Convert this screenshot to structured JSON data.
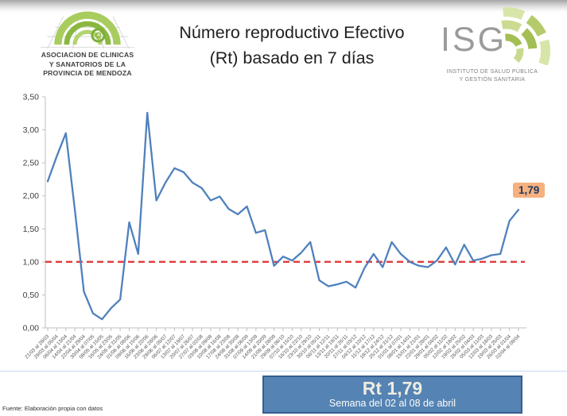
{
  "header": {
    "left_logo": {
      "line1": "ASOCIACION DE CLINICAS",
      "line2": "Y SANATORIOS DE LA",
      "line3": "PROVINCIA DE MENDOZA"
    },
    "title_line1": "Número reproductivo Efectivo",
    "title_line2": "(Rt) basado en 7 días",
    "right_logo": {
      "acronym": "ISG",
      "sub_line1": "INSTITUTO DE SALUD PÚBLICA",
      "sub_line2": "Y GESTIÓN SANITARIA"
    }
  },
  "chart_data": {
    "type": "line",
    "title": "Número reproductivo Efectivo (Rt) basado en 7 días",
    "ylabel": "",
    "xlabel": "",
    "ylim": [
      0,
      3.5
    ],
    "y_ticks": [
      "0,00",
      "0,50",
      "1,00",
      "1,50",
      "2,00",
      "2,50",
      "3,00",
      "3,50"
    ],
    "grid": false,
    "legend_position": "none",
    "line_color": "#4f81bd",
    "axis_color": "#bfbfbf",
    "reference_line": {
      "value": 1.0,
      "color": "#e03b3b",
      "style": "dashed"
    },
    "categories": [
      "21/03 al 28/03",
      "29/03 al 05/04",
      "06/04 al 13/04",
      "14/04 al 21/04",
      "22/04 al 29/04",
      "30/04 al 07/05",
      "08/05 al 15/05",
      "16/05 al 23/05",
      "24/05 al 31/05",
      "01/06 al 08/06",
      "09/06 al 15/06",
      "16/06 al 22/06",
      "23/06 al 28/06",
      "29/06 al 05/07",
      "06/07 al 12/07",
      "13/07 al 19/07",
      "20/07 al 26/07",
      "27/07 al 02/08",
      "03/08 al 09/08",
      "10/08 al 16/08",
      "17/08 al 23/08",
      "24/08 al 30/08",
      "31/08 al 06/09",
      "07/09 al 13/09",
      "14/09 al 20/09",
      "21/09 al 28/09",
      "29/09 al 06/10",
      "07/10 al 15/10",
      "16/10 al 22/10",
      "23/10 al 29/10",
      "30/10 al 05/11",
      "06/11 al 12/11",
      "13/11 al 19/11",
      "20/11 al 26/11",
      "27/11 al 03/12",
      "04/12 al 10/12",
      "11/12 al 17/12",
      "18/12 al 24/12",
      "25/12 al 31/12",
      "01/01 al 07/01",
      "08/01 al 14/01",
      "15/01 al 21/01",
      "22/01 al 28/01",
      "29/01 al 04/02",
      "05/02 al 11/02",
      "12/02 al 18/02",
      "19/02 al 25/02",
      "26/02 al 04/03",
      "05/03 al 11/03",
      "12/03 al 18/03",
      "19/03 al 25/03",
      "26/03 al 01/04",
      "02/04 al 08/04"
    ],
    "values": [
      2.22,
      2.6,
      2.95,
      1.78,
      0.55,
      0.22,
      0.13,
      0.3,
      0.43,
      1.6,
      1.12,
      3.26,
      1.93,
      2.2,
      2.42,
      2.36,
      2.2,
      2.12,
      1.93,
      1.99,
      1.8,
      1.72,
      1.84,
      1.44,
      1.48,
      0.94,
      1.08,
      1.02,
      1.14,
      1.3,
      0.72,
      0.63,
      0.66,
      0.7,
      0.61,
      0.91,
      1.12,
      0.92,
      1.3,
      1.12,
      1.0,
      0.94,
      0.92,
      1.02,
      1.22,
      0.96,
      1.26,
      1.02,
      1.05,
      1.1,
      1.12,
      1.62,
      1.79
    ],
    "end_label": {
      "text": "1,79",
      "bg_color": "#f6b17e",
      "text_color": "#1f3864"
    }
  },
  "footer": {
    "source_note": "Fuente: Elaboración propia con datos",
    "highlight_box": {
      "title": "Rt 1,79",
      "subtitle": "Semana del 02 al 08 de abril",
      "bg_color": "#5583b3",
      "border_color": "#365f91"
    }
  }
}
